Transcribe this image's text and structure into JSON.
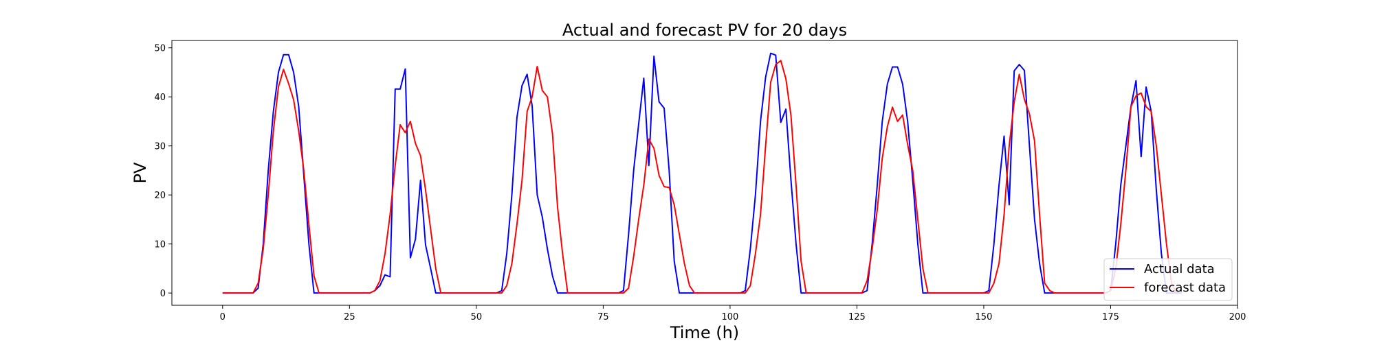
{
  "chart_data": {
    "type": "line",
    "title": "Actual and forecast PV for 20 days",
    "xlabel": "Time (h)",
    "ylabel": "PV",
    "xlim": [
      -10,
      200
    ],
    "ylim": [
      -2.5,
      51.5
    ],
    "xticks": [
      0,
      25,
      50,
      75,
      100,
      125,
      150,
      175,
      200
    ],
    "yticks": [
      0,
      10,
      20,
      30,
      40,
      50
    ],
    "legend_position": "lower-right",
    "grid": false,
    "series": [
      {
        "name": "Actual data",
        "color": "#0000ff",
        "points": [
          [
            0,
            0
          ],
          [
            6,
            0
          ],
          [
            7,
            1
          ],
          [
            8,
            10
          ],
          [
            9,
            25
          ],
          [
            10,
            37
          ],
          [
            11,
            45
          ],
          [
            12,
            48.6
          ],
          [
            13,
            48.6
          ],
          [
            14,
            45
          ],
          [
            15,
            38
          ],
          [
            16,
            24
          ],
          [
            17,
            10
          ],
          [
            18,
            0
          ],
          [
            28,
            0
          ],
          [
            29,
            0
          ],
          [
            30,
            0.5
          ],
          [
            31,
            1.5
          ],
          [
            32,
            3.7
          ],
          [
            33,
            3.3
          ],
          [
            34,
            41.6
          ],
          [
            35,
            41.6
          ],
          [
            36,
            45.7
          ],
          [
            37,
            7.2
          ],
          [
            38,
            11
          ],
          [
            39,
            23
          ],
          [
            40,
            9.8
          ],
          [
            41,
            5
          ],
          [
            42,
            0
          ],
          [
            54,
            0
          ],
          [
            55,
            0.5
          ],
          [
            56,
            8
          ],
          [
            57,
            20
          ],
          [
            58,
            35.8
          ],
          [
            59,
            42.3
          ],
          [
            60,
            44.6
          ],
          [
            61,
            38.2
          ],
          [
            62,
            20
          ],
          [
            63,
            15.5
          ],
          [
            64,
            9
          ],
          [
            65,
            3.5
          ],
          [
            66,
            0
          ],
          [
            78,
            0
          ],
          [
            79,
            0.5
          ],
          [
            80,
            12
          ],
          [
            81,
            25
          ],
          [
            82,
            34.5
          ],
          [
            83,
            43.8
          ],
          [
            84,
            26
          ],
          [
            85,
            48.3
          ],
          [
            86,
            39
          ],
          [
            87,
            37.7
          ],
          [
            88,
            25
          ],
          [
            89,
            6.5
          ],
          [
            90,
            0
          ],
          [
            102,
            0
          ],
          [
            103,
            0.5
          ],
          [
            104,
            9
          ],
          [
            105,
            20
          ],
          [
            106,
            35
          ],
          [
            107,
            44
          ],
          [
            108,
            48.9
          ],
          [
            109,
            48.5
          ],
          [
            110,
            34.8
          ],
          [
            111,
            37.5
          ],
          [
            112,
            23
          ],
          [
            113,
            10
          ],
          [
            114,
            0
          ],
          [
            126,
            0
          ],
          [
            127,
            0.5
          ],
          [
            128,
            10
          ],
          [
            129,
            22
          ],
          [
            130,
            35
          ],
          [
            131,
            42.6
          ],
          [
            132,
            46.1
          ],
          [
            133,
            46.1
          ],
          [
            134,
            42.6
          ],
          [
            135,
            35
          ],
          [
            136,
            23
          ],
          [
            137,
            10
          ],
          [
            138,
            0
          ],
          [
            150,
            0
          ],
          [
            151,
            0.5
          ],
          [
            152,
            10
          ],
          [
            153,
            22
          ],
          [
            154,
            32
          ],
          [
            155,
            18
          ],
          [
            156,
            45.3
          ],
          [
            157,
            46.6
          ],
          [
            158,
            45.4
          ],
          [
            159,
            30
          ],
          [
            160,
            15
          ],
          [
            161,
            6
          ],
          [
            162,
            0
          ],
          [
            174,
            0
          ],
          [
            175,
            0.5
          ],
          [
            176,
            10
          ],
          [
            177,
            22
          ],
          [
            178,
            30
          ],
          [
            179,
            38
          ],
          [
            180,
            43.3
          ],
          [
            181,
            27.8
          ],
          [
            182,
            42
          ],
          [
            183,
            37
          ],
          [
            184,
            21
          ],
          [
            185,
            8
          ],
          [
            186,
            0
          ],
          [
            189,
            0
          ]
        ]
      },
      {
        "name": "forecast data",
        "color": "#ff0000",
        "points": [
          [
            0,
            0
          ],
          [
            6,
            0
          ],
          [
            7,
            2
          ],
          [
            8,
            9
          ],
          [
            9,
            20
          ],
          [
            10,
            33
          ],
          [
            11,
            42
          ],
          [
            12,
            45.6
          ],
          [
            13,
            42.7
          ],
          [
            14,
            39.4
          ],
          [
            15,
            33
          ],
          [
            16,
            25
          ],
          [
            17,
            14
          ],
          [
            18,
            3.5
          ],
          [
            19,
            0
          ],
          [
            29,
            0
          ],
          [
            30,
            0.5
          ],
          [
            31,
            2.5
          ],
          [
            32,
            8
          ],
          [
            33,
            16
          ],
          [
            34,
            26
          ],
          [
            35,
            34.3
          ],
          [
            36,
            32.7
          ],
          [
            37,
            35
          ],
          [
            38,
            30.5
          ],
          [
            39,
            28
          ],
          [
            40,
            21
          ],
          [
            41,
            13
          ],
          [
            42,
            5
          ],
          [
            43,
            0
          ],
          [
            55,
            0
          ],
          [
            56,
            1.5
          ],
          [
            57,
            6
          ],
          [
            58,
            14
          ],
          [
            59,
            23
          ],
          [
            60,
            37
          ],
          [
            61,
            40
          ],
          [
            62,
            46.2
          ],
          [
            63,
            41.3
          ],
          [
            64,
            40
          ],
          [
            65,
            32.5
          ],
          [
            66,
            17.5
          ],
          [
            67,
            8
          ],
          [
            68,
            0
          ],
          [
            79,
            0
          ],
          [
            80,
            1
          ],
          [
            81,
            7.5
          ],
          [
            82,
            15
          ],
          [
            83,
            22
          ],
          [
            84,
            31.4
          ],
          [
            85,
            29.5
          ],
          [
            86,
            24
          ],
          [
            87,
            21.7
          ],
          [
            88,
            21.5
          ],
          [
            89,
            18
          ],
          [
            90,
            12
          ],
          [
            91,
            6
          ],
          [
            92,
            1.5
          ],
          [
            93,
            0
          ],
          [
            103,
            0
          ],
          [
            104,
            1.5
          ],
          [
            105,
            8
          ],
          [
            106,
            16
          ],
          [
            107,
            30
          ],
          [
            108,
            43
          ],
          [
            109,
            46.6
          ],
          [
            110,
            47.4
          ],
          [
            111,
            43.7
          ],
          [
            112,
            36.2
          ],
          [
            113,
            22
          ],
          [
            114,
            6.5
          ],
          [
            115,
            0
          ],
          [
            126,
            0
          ],
          [
            127,
            2.5
          ],
          [
            128,
            9
          ],
          [
            129,
            17
          ],
          [
            130,
            27.5
          ],
          [
            131,
            33.9
          ],
          [
            132,
            37.9
          ],
          [
            133,
            35
          ],
          [
            134,
            36.3
          ],
          [
            135,
            30.3
          ],
          [
            136,
            25
          ],
          [
            137,
            15
          ],
          [
            138,
            5
          ],
          [
            139,
            0
          ],
          [
            151,
            0
          ],
          [
            152,
            2
          ],
          [
            153,
            6
          ],
          [
            154,
            16
          ],
          [
            155,
            30
          ],
          [
            156,
            39
          ],
          [
            157,
            44.6
          ],
          [
            158,
            39.5
          ],
          [
            159,
            36.5
          ],
          [
            160,
            31
          ],
          [
            161,
            16
          ],
          [
            162,
            2
          ],
          [
            163,
            0.5
          ],
          [
            164,
            0
          ],
          [
            174,
            0
          ],
          [
            175,
            0.5
          ],
          [
            176,
            5
          ],
          [
            177,
            14
          ],
          [
            178,
            25
          ],
          [
            179,
            38
          ],
          [
            180,
            40.2
          ],
          [
            181,
            40.8
          ],
          [
            182,
            38
          ],
          [
            183,
            37
          ],
          [
            184,
            30
          ],
          [
            185,
            20
          ],
          [
            186,
            10
          ],
          [
            187,
            2
          ],
          [
            188,
            0
          ]
        ]
      }
    ]
  }
}
